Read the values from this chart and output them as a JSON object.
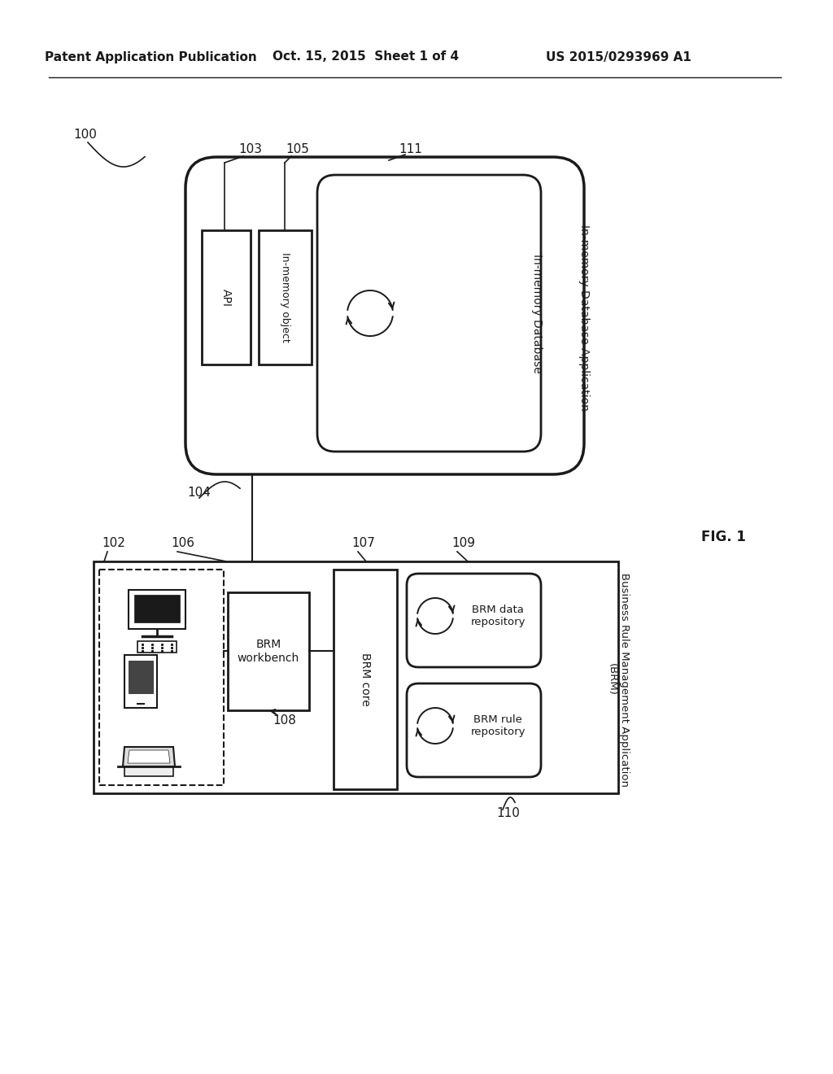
{
  "header_left": "Patent Application Publication",
  "header_mid": "Oct. 15, 2015  Sheet 1 of 4",
  "header_right": "US 2015/0293969 A1",
  "fig_label": "FIG. 1",
  "bg_color": "#ffffff",
  "lc": "#1a1a1a",
  "label_100": "100",
  "label_102": "102",
  "label_103": "103",
  "label_104": "104",
  "label_105": "105",
  "label_106": "106",
  "label_107": "107",
  "label_108": "108",
  "label_109": "109",
  "label_110": "110",
  "label_111": "111",
  "text_api": "API",
  "text_inmem_obj": "In-memory object",
  "text_inmem_db": "In-memory Database",
  "text_inmem_db_app": "In-memory Database Application",
  "text_brm_workbench": "BRM\nworkbench",
  "text_brm_core": "BRM core",
  "text_brm_data_repo": "BRM data\nrepository",
  "text_brm_rule_repo": "BRM rule\nrepository",
  "text_brm_app": "Business Rule Management Application\n(BRM)"
}
